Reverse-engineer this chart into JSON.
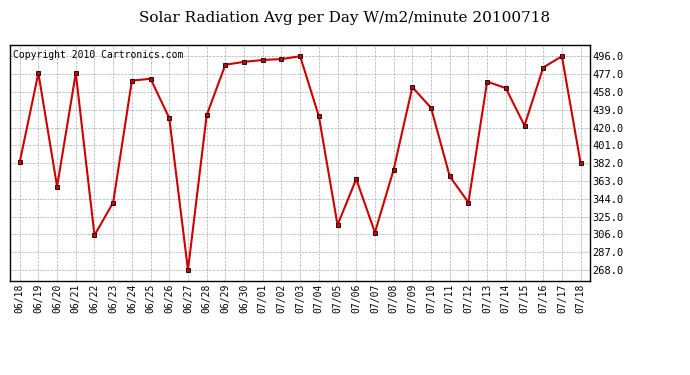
{
  "title": "Solar Radiation Avg per Day W/m2/minute 20100718",
  "copyright": "Copyright 2010 Cartronics.com",
  "dates": [
    "06/18",
    "06/19",
    "06/20",
    "06/21",
    "06/22",
    "06/23",
    "06/24",
    "06/25",
    "06/26",
    "06/27",
    "06/28",
    "06/29",
    "06/30",
    "07/01",
    "07/02",
    "07/03",
    "07/04",
    "07/05",
    "07/06",
    "07/07",
    "07/08",
    "07/09",
    "07/10",
    "07/11",
    "07/12",
    "07/13",
    "07/14",
    "07/15",
    "07/16",
    "07/17",
    "07/18"
  ],
  "values": [
    383,
    478,
    357,
    478,
    305,
    340,
    470,
    472,
    430,
    268,
    433,
    487,
    490,
    492,
    493,
    496,
    432,
    316,
    365,
    308,
    375,
    463,
    441,
    368,
    340,
    469,
    462,
    422,
    484,
    496,
    382
  ],
  "line_color": "#cc0000",
  "marker_color": "#000000",
  "bg_color": "#ffffff",
  "plot_bg_color": "#ffffff",
  "grid_color": "#999999",
  "yticks": [
    268.0,
    287.0,
    306.0,
    325.0,
    344.0,
    363.0,
    382.0,
    401.0,
    420.0,
    439.0,
    458.0,
    477.0,
    496.0
  ],
  "ylim": [
    256,
    508
  ],
  "title_fontsize": 11,
  "copyright_fontsize": 7,
  "tick_fontsize": 7,
  "ytick_fontsize": 7.5
}
